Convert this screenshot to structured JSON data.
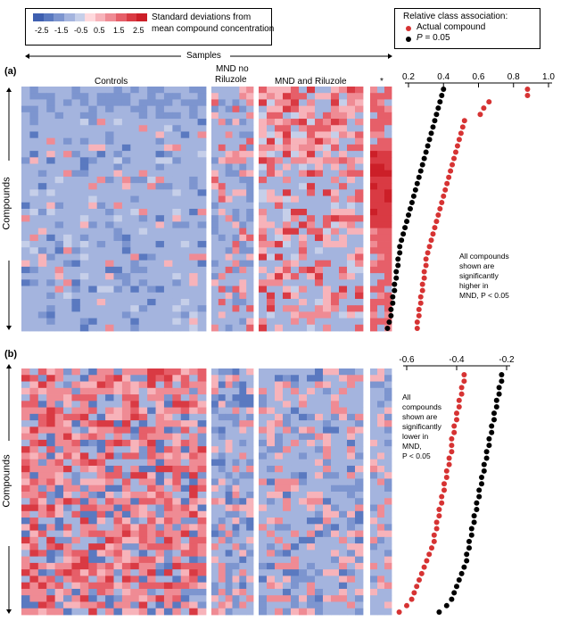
{
  "legend_scale": {
    "ticks": [
      "-2.5",
      "-1.5",
      "-0.5",
      "0.5",
      "1.5",
      "2.5"
    ],
    "description_line1": "Standard deviations from",
    "description_line2": "mean compound concentration",
    "colors": [
      "#3e5fb0",
      "#5a79c0",
      "#7d95cf",
      "#a4b4de",
      "#c6cfe9",
      "#ffd9dd",
      "#f7b3ba",
      "#ef8b94",
      "#e65f69",
      "#d93a43",
      "#cc1f28"
    ]
  },
  "legend_class": {
    "title": "Relative class association:",
    "actual_label": "Actual compound",
    "p_label_italic": "P",
    "p_label_rest": " = 0.05",
    "actual_color": "#d63333",
    "threshold_color": "#000000"
  },
  "samples_label": "Samples",
  "compounds_label": "Compounds",
  "panel_a": {
    "letter": "(a)",
    "group_controls": "Controls",
    "group_mnd_no_riluzole_1": "MND no",
    "group_mnd_no_riluzole_2": "Riluzole",
    "group_mnd_riluzole": "MND and Riluzole",
    "group_star": "*",
    "note_lines": [
      "All compounds",
      "shown are",
      "significantly",
      "higher in",
      "MND, P < 0.05"
    ],
    "axis_ticks": [
      "0.2",
      "0.4",
      "0.6",
      "0.8",
      "1.0"
    ]
  },
  "panel_b": {
    "letter": "(b)",
    "note_lines": [
      "All",
      "compounds",
      "shown are",
      "significantly",
      "lower in",
      "MND,",
      "P < 0.05"
    ],
    "axis_ticks": [
      "-0.6",
      "-0.4",
      "-0.2"
    ]
  },
  "chart_data": [
    {
      "type": "scatter",
      "panel": "a",
      "x_axis_ticks": [
        0.2,
        0.4,
        0.6,
        0.8,
        1.0
      ],
      "xlim": [
        0.2,
        1.0
      ],
      "series": [
        {
          "name": "Actual compound",
          "values": [
            0.88,
            0.88,
            0.66,
            0.63,
            0.61,
            0.52,
            0.51,
            0.5,
            0.49,
            0.48,
            0.47,
            0.46,
            0.45,
            0.44,
            0.43,
            0.42,
            0.41,
            0.4,
            0.39,
            0.38,
            0.37,
            0.36,
            0.35,
            0.34,
            0.33,
            0.32,
            0.31,
            0.3,
            0.3,
            0.29,
            0.29,
            0.28,
            0.28,
            0.27,
            0.27,
            0.26,
            0.26,
            0.25,
            0.25
          ]
        },
        {
          "name": "P = 0.05",
          "values": [
            0.4,
            0.39,
            0.38,
            0.37,
            0.36,
            0.35,
            0.34,
            0.33,
            0.32,
            0.31,
            0.3,
            0.29,
            0.28,
            0.27,
            0.26,
            0.25,
            0.24,
            0.23,
            0.22,
            0.21,
            0.2,
            0.19,
            0.18,
            0.17,
            0.16,
            0.15,
            0.15,
            0.14,
            0.14,
            0.13,
            0.13,
            0.12,
            0.12,
            0.11,
            0.11,
            0.1,
            0.1,
            0.09,
            0.08
          ]
        }
      ]
    },
    {
      "type": "scatter",
      "panel": "b",
      "x_axis_ticks": [
        -0.6,
        -0.4,
        -0.2
      ],
      "xlim": [
        -0.6,
        -0.2
      ],
      "series": [
        {
          "name": "Actual compound",
          "values": [
            -0.37,
            -0.37,
            -0.38,
            -0.38,
            -0.39,
            -0.39,
            -0.4,
            -0.4,
            -0.41,
            -0.41,
            -0.42,
            -0.42,
            -0.42,
            -0.43,
            -0.43,
            -0.44,
            -0.44,
            -0.45,
            -0.45,
            -0.46,
            -0.46,
            -0.47,
            -0.47,
            -0.48,
            -0.48,
            -0.49,
            -0.49,
            -0.5,
            -0.51,
            -0.52,
            -0.53,
            -0.54,
            -0.55,
            -0.56,
            -0.57,
            -0.58,
            -0.6,
            -0.63
          ]
        },
        {
          "name": "P = 0.05",
          "values": [
            -0.22,
            -0.22,
            -0.23,
            -0.23,
            -0.24,
            -0.24,
            -0.25,
            -0.25,
            -0.26,
            -0.26,
            -0.27,
            -0.27,
            -0.28,
            -0.28,
            -0.29,
            -0.29,
            -0.3,
            -0.3,
            -0.31,
            -0.31,
            -0.32,
            -0.32,
            -0.33,
            -0.33,
            -0.34,
            -0.34,
            -0.35,
            -0.35,
            -0.36,
            -0.36,
            -0.37,
            -0.38,
            -0.39,
            -0.4,
            -0.41,
            -0.42,
            -0.44,
            -0.47
          ]
        }
      ]
    }
  ]
}
